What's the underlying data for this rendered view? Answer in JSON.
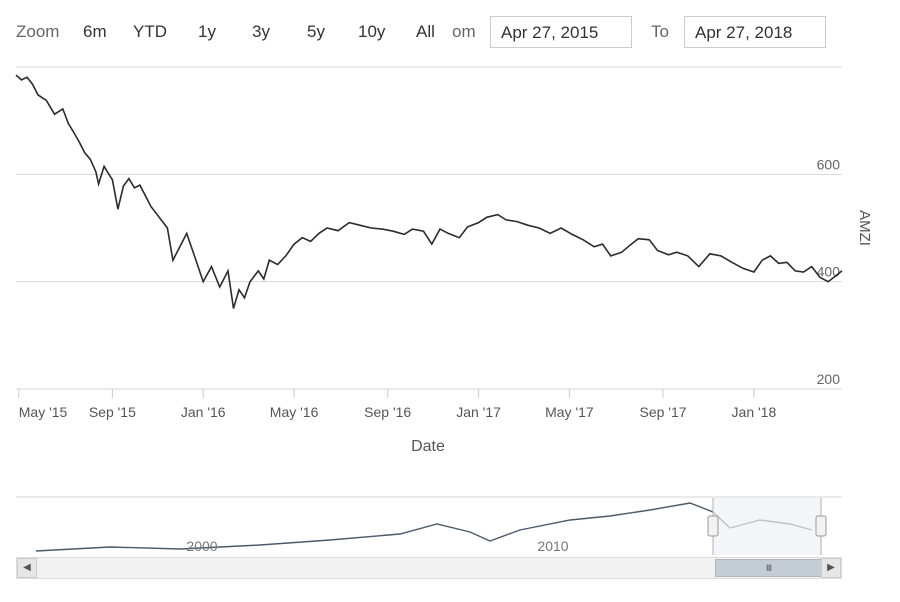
{
  "toolbar": {
    "zoom_label": "Zoom",
    "buttons": [
      "6m",
      "YTD",
      "1y",
      "3y",
      "5y",
      "10y",
      "All"
    ],
    "from_label": "om",
    "to_label": "To",
    "from_value": "Apr 27, 2015",
    "to_value": "Apr 27, 2018"
  },
  "colors": {
    "line": "#2b2b2b",
    "grid": "#d6d6d6",
    "navigator_mask": "#f2f4f7",
    "navigator_line": "#4a5a6a"
  },
  "chart_data": {
    "type": "line",
    "title": "",
    "xlabel": "Date",
    "ylabel": "AMZI",
    "ylim": [
      200,
      800
    ],
    "y_ticks": [
      200,
      400,
      600
    ],
    "x_tick_labels": [
      "May '15",
      "Sep '15",
      "Jan '16",
      "May '16",
      "Sep '16",
      "Jan '17",
      "May '17",
      "Sep '17",
      "Jan '18"
    ],
    "x_ticks_months": [
      2015.33,
      2015.67,
      2016.0,
      2016.33,
      2016.67,
      2017.0,
      2017.33,
      2017.67,
      2018.0
    ],
    "x_range": [
      2015.32,
      2018.32
    ],
    "series": [
      {
        "x": [
          2015.32,
          2015.34,
          2015.36,
          2015.38,
          2015.4,
          2015.43,
          2015.46,
          2015.49,
          2015.51,
          2015.53,
          2015.55,
          2015.57,
          2015.59,
          2015.61,
          2015.62,
          2015.64,
          2015.66,
          2015.67,
          2015.69,
          2015.71,
          2015.73,
          2015.75,
          2015.77,
          2015.79,
          2015.81,
          2015.84,
          2015.87,
          2015.89,
          2015.92,
          2015.94,
          2015.97,
          2016.0,
          2016.03,
          2016.06,
          2016.09,
          2016.11,
          2016.13,
          2016.15,
          2016.17,
          2016.2,
          2016.22,
          2016.24,
          2016.27,
          2016.3,
          2016.33,
          2016.36,
          2016.39,
          2016.42,
          2016.45,
          2016.49,
          2016.53,
          2016.57,
          2016.61,
          2016.65,
          2016.69,
          2016.73,
          2016.76,
          2016.8,
          2016.83,
          2016.86,
          2016.89,
          2016.93,
          2016.96,
          2017.0,
          2017.03,
          2017.07,
          2017.1,
          2017.14,
          2017.18,
          2017.22,
          2017.26,
          2017.3,
          2017.34,
          2017.38,
          2017.42,
          2017.45,
          2017.48,
          2017.52,
          2017.55,
          2017.58,
          2017.62,
          2017.65,
          2017.69,
          2017.72,
          2017.76,
          2017.8,
          2017.84,
          2017.88,
          2017.92,
          2017.96,
          2018.0,
          2018.03,
          2018.06,
          2018.09,
          2018.12,
          2018.15,
          2018.18,
          2018.21,
          2018.24,
          2018.27,
          2018.3,
          2018.32
        ],
        "y": [
          785,
          776,
          781,
          768,
          748,
          738,
          712,
          722,
          695,
          678,
          660,
          640,
          628,
          605,
          582,
          615,
          598,
          590,
          535,
          578,
          592,
          575,
          580,
          560,
          540,
          520,
          500,
          440,
          470,
          490,
          445,
          400,
          428,
          390,
          420,
          350,
          385,
          370,
          400,
          420,
          405,
          440,
          432,
          448,
          470,
          482,
          475,
          490,
          500,
          495,
          510,
          505,
          500,
          498,
          494,
          488,
          498,
          494,
          470,
          498,
          490,
          482,
          502,
          510,
          520,
          525,
          515,
          512,
          505,
          500,
          490,
          500,
          488,
          478,
          465,
          470,
          448,
          455,
          468,
          480,
          478,
          458,
          450,
          455,
          448,
          428,
          452,
          448,
          436,
          425,
          418,
          440,
          448,
          434,
          436,
          420,
          418,
          428,
          408,
          400,
          412,
          420
        ]
      }
    ],
    "navigator": {
      "tick_labels": [
        "2000",
        "2010"
      ]
    }
  }
}
